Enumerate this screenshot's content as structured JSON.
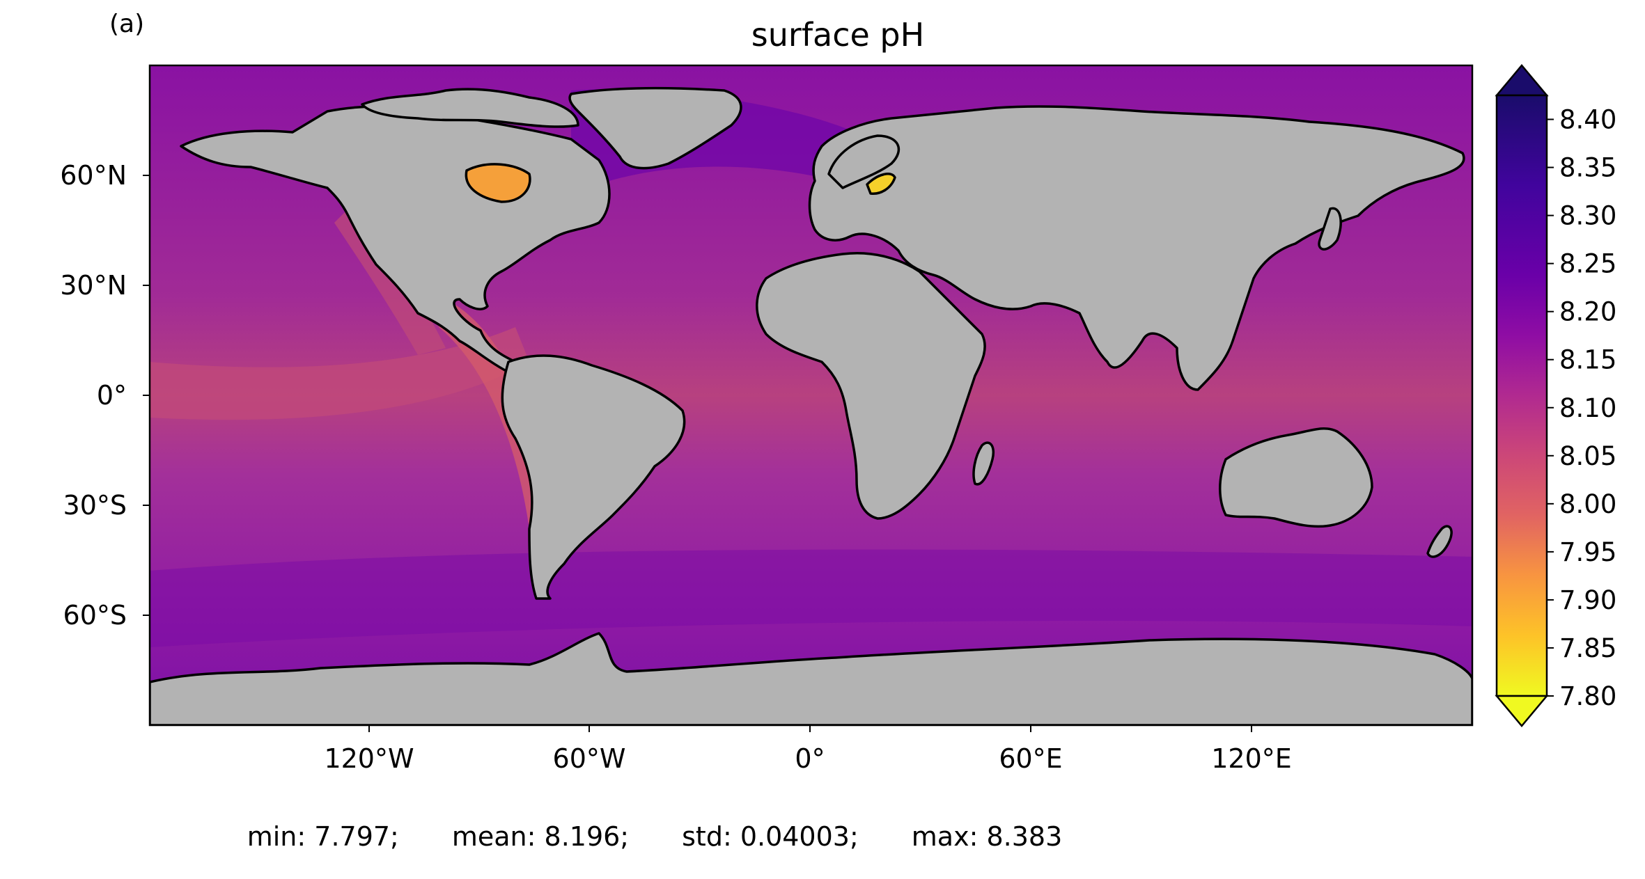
{
  "panel_label": "(a)",
  "title": "surface pH",
  "lon_ticks": [
    "120°W",
    "60°W",
    "0°",
    "60°E",
    "120°E"
  ],
  "lat_ticks": [
    "60°N",
    "30°N",
    "0°",
    "30°S",
    "60°S"
  ],
  "colorbar": {
    "ticks": [
      "8.40",
      "8.35",
      "8.30",
      "8.25",
      "8.20",
      "8.15",
      "8.10",
      "8.05",
      "8.00",
      "7.95",
      "7.90",
      "7.85",
      "7.80"
    ],
    "vmin": 7.8,
    "vmax": 8.425,
    "extend": "both",
    "colormap": "plasma (reversed)"
  },
  "stats": {
    "min": "min: 7.797;",
    "mean": "mean: 8.196;",
    "std": "std: 0.04003;",
    "max": "max: 8.383"
  },
  "colors": {
    "land": "#b3b3b3",
    "ocean_typical": "#a42c9a",
    "ocean_high": "#6a00a8",
    "ocean_low": "#f2983b"
  }
}
